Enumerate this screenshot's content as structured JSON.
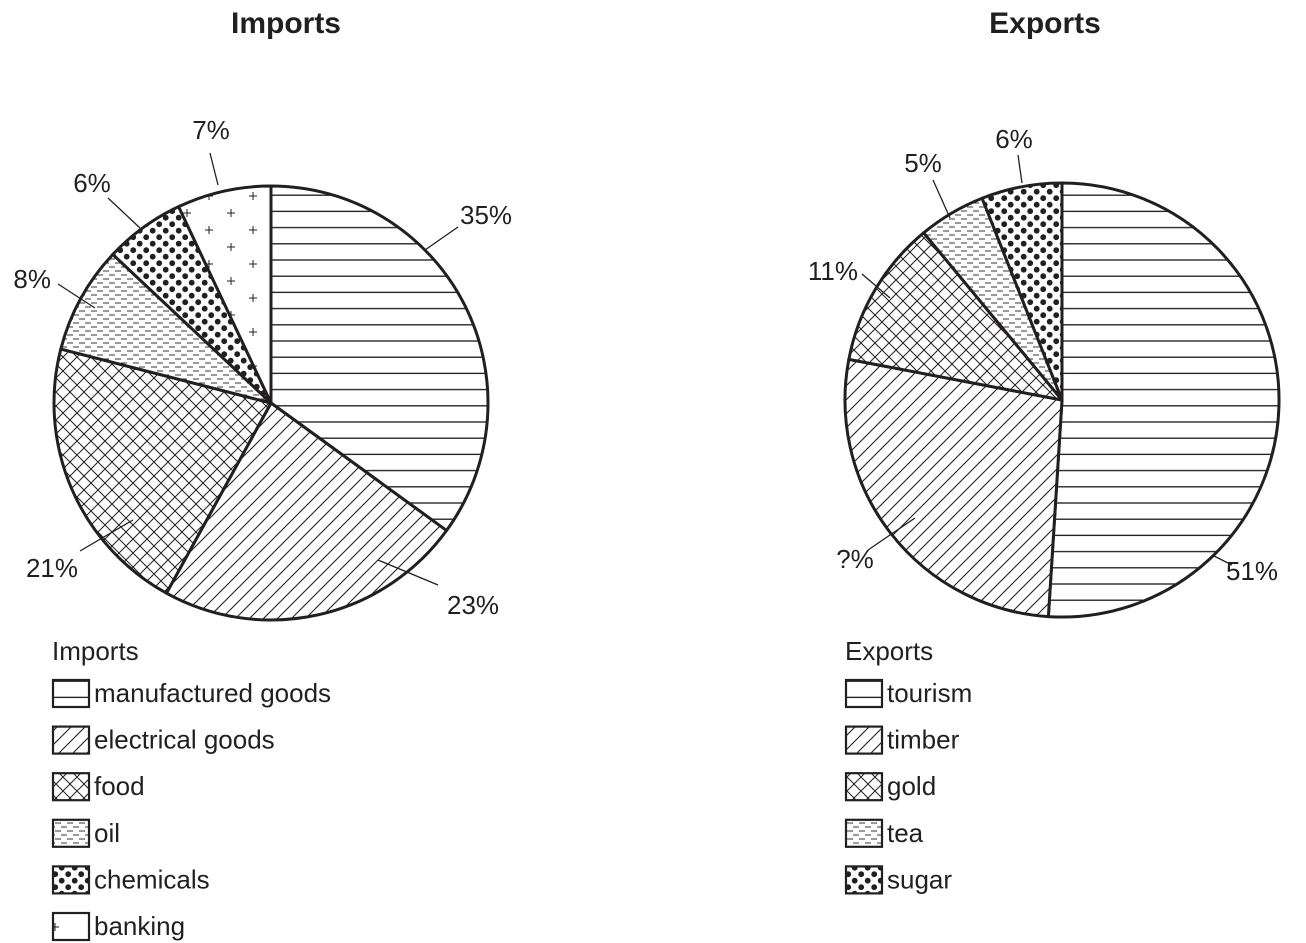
{
  "chart_data": [
    {
      "type": "pie",
      "title": "Imports",
      "legend_title": "Imports",
      "legend_placement": "bottom-left",
      "slices": [
        {
          "name": "manufactured goods",
          "value": 35,
          "label": "35%",
          "pattern": "horizontal-lines"
        },
        {
          "name": "electrical goods",
          "value": 23,
          "label": "23%",
          "pattern": "diagonal-lines"
        },
        {
          "name": "food",
          "value": 21,
          "label": "21%",
          "pattern": "crosshatch"
        },
        {
          "name": "oil",
          "value": 8,
          "label": "8%",
          "pattern": "dashes"
        },
        {
          "name": "chemicals",
          "value": 6,
          "label": "6%",
          "pattern": "dots"
        },
        {
          "name": "banking",
          "value": 7,
          "label": "7%",
          "pattern": "plus"
        }
      ]
    },
    {
      "type": "pie",
      "title": "Exports",
      "legend_title": "Exports",
      "legend_placement": "bottom-left",
      "slices": [
        {
          "name": "tourism",
          "value": 51,
          "label": "51%",
          "pattern": "horizontal-lines"
        },
        {
          "name": "timber",
          "value": 27,
          "label": "?%",
          "pattern": "diagonal-lines"
        },
        {
          "name": "gold",
          "value": 11,
          "label": "11%",
          "pattern": "crosshatch"
        },
        {
          "name": "tea",
          "value": 5,
          "label": "5%",
          "pattern": "dashes"
        },
        {
          "name": "sugar",
          "value": 6,
          "label": "6%",
          "pattern": "dots"
        }
      ]
    }
  ],
  "colors": {
    "ink": "#231f20",
    "background": "#ffffff"
  }
}
